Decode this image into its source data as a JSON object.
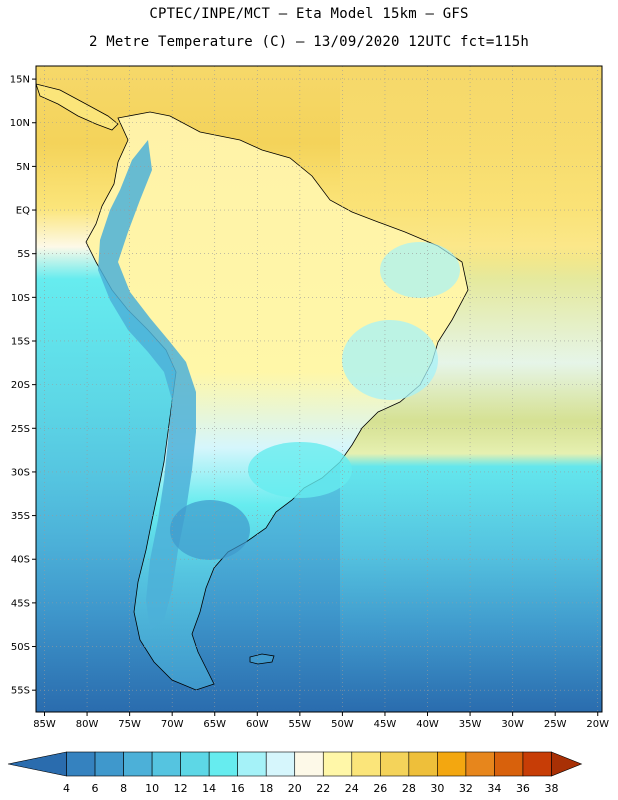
{
  "title": {
    "line1": "CPTEC/INPE/MCT –  Eta Model 15km – GFS",
    "line2": "2 Metre Temperature (C) – 13/09/2020 12UTC fct=115h"
  },
  "map": {
    "lat_labels": [
      "15N",
      "10N",
      "5N",
      "EQ",
      "5S",
      "10S",
      "15S",
      "20S",
      "25S",
      "30S",
      "35S",
      "40S",
      "45S",
      "50S",
      "55S"
    ],
    "lon_labels": [
      "85W",
      "80W",
      "75W",
      "70W",
      "65W",
      "60W",
      "55W",
      "50W",
      "45W",
      "40W",
      "35W",
      "30W",
      "25W",
      "20W"
    ],
    "extent": {
      "lon_min": -86,
      "lon_max": -19.5,
      "lat_min": -57.5,
      "lat_max": 16.5
    },
    "gridlines": true
  },
  "colorbar": {
    "values": [
      "4",
      "6",
      "8",
      "10",
      "12",
      "14",
      "16",
      "18",
      "20",
      "22",
      "24",
      "26",
      "28",
      "30",
      "32",
      "34",
      "36",
      "38"
    ],
    "colors": [
      "#2a6cae",
      "#3582bf",
      "#3f98cc",
      "#4cb0d8",
      "#55c4e0",
      "#5dd7e6",
      "#66ecef",
      "#a5f2f8",
      "#d6f6fc",
      "#fdf9e8",
      "#fff7a8",
      "#fbe57a",
      "#f4d35a",
      "#eebf3a",
      "#f3a710",
      "#e7861c",
      "#d8610c",
      "#c73d06",
      "#a83005"
    ]
  },
  "colors": {
    "ocean_north": "#f6d86a",
    "ocean_south": "#4cb0d8",
    "land_warm": "#fff2a8",
    "coastline": "#000000"
  }
}
